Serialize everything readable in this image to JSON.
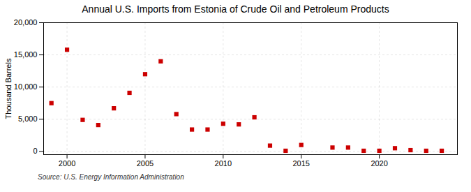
{
  "chart_data": {
    "type": "scatter",
    "title": "Annual U.S. Imports from Estonia of Crude Oil and Petroleum Products",
    "ylabel": "Thousand Barrels",
    "annotations": [
      "Source: U.S. Energy Information Administration"
    ],
    "x": [
      1999,
      2000,
      2001,
      2002,
      2003,
      2004,
      2005,
      2006,
      2007,
      2008,
      2009,
      2010,
      2011,
      2012,
      2013,
      2014,
      2015,
      2017,
      2018,
      2019,
      2020,
      2021,
      2022,
      2023,
      2024
    ],
    "values": [
      7500,
      15800,
      4900,
      4100,
      6700,
      9100,
      12000,
      14000,
      5800,
      3400,
      3400,
      4300,
      4200,
      5300,
      900,
      100,
      1000,
      600,
      600,
      100,
      100,
      500,
      200,
      100,
      100
    ],
    "color": "#cc0000",
    "marker": "square",
    "xlim": [
      1998.5,
      2025
    ],
    "xticks": [
      2000,
      2005,
      2010,
      2015,
      2020
    ],
    "ylim": [
      -500,
      20000
    ],
    "yticks": [
      0,
      {
        "value": 5000,
        "label": "5,000"
      },
      {
        "value": 10000,
        "label": "10,000"
      },
      {
        "value": 15000,
        "label": "15,000"
      },
      {
        "value": 20000,
        "label": "20,000"
      }
    ],
    "grid": true
  }
}
